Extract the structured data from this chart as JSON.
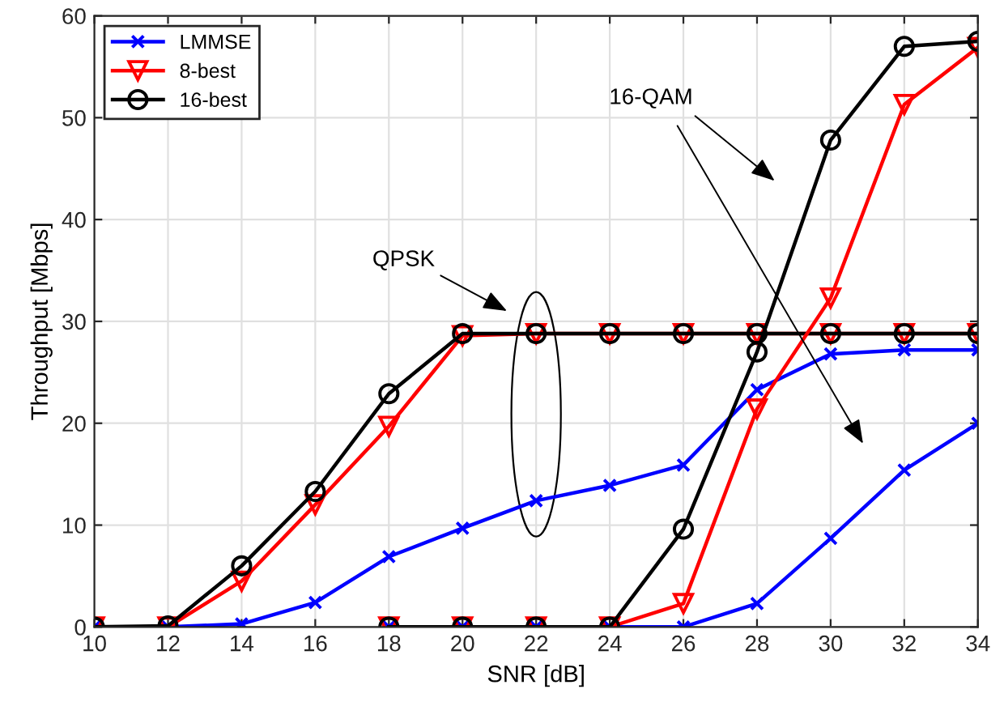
{
  "chart_data": {
    "type": "line",
    "xlabel": "SNR [dB]",
    "ylabel": "Throughput [Mbps]",
    "x": [
      10,
      12,
      14,
      16,
      18,
      20,
      22,
      24,
      26,
      28,
      30,
      32,
      34
    ],
    "series": [
      {
        "name": "LMMSE",
        "color": "#0000ff",
        "marker": "cross",
        "values": [
          0,
          0,
          0.3,
          2.4,
          6.9,
          9.7,
          12.4,
          13.9,
          15.9,
          23.3,
          26.8,
          27.2,
          27.2
        ]
      },
      {
        "name": "8-best",
        "color": "#ff0000",
        "marker": "triangle",
        "values": [
          0,
          0,
          4.5,
          12.0,
          19.7,
          28.6,
          28.8,
          28.8,
          28.8,
          28.8,
          28.8,
          28.8,
          28.8
        ]
      },
      {
        "name": "16-best",
        "color": "#000000",
        "marker": "circle",
        "values": [
          0,
          0.1,
          6.0,
          13.3,
          22.9,
          28.8,
          28.8,
          28.8,
          28.8,
          28.8,
          28.8,
          28.8,
          28.8
        ]
      },
      {
        "color": "#0000ff",
        "marker": "cross",
        "values": [
          null,
          null,
          null,
          null,
          0,
          0,
          0,
          0,
          0,
          2.3,
          8.7,
          15.4,
          20.0
        ]
      },
      {
        "color": "#ff0000",
        "marker": "triangle",
        "values": [
          null,
          null,
          null,
          null,
          0,
          0,
          0,
          0,
          2.3,
          21.4,
          32.3,
          51.3,
          56.9
        ]
      },
      {
        "color": "#000000",
        "marker": "circle",
        "values": [
          null,
          null,
          null,
          null,
          0,
          0,
          0,
          0,
          9.6,
          27.0,
          47.8,
          57.0,
          57.5
        ]
      }
    ],
    "xlim": [
      10,
      34
    ],
    "ylim": [
      0,
      60
    ],
    "xticks": [
      10,
      12,
      14,
      16,
      18,
      20,
      22,
      24,
      26,
      28,
      30,
      32,
      34
    ],
    "yticks": [
      0,
      10,
      20,
      30,
      40,
      50,
      60
    ],
    "grid": true,
    "legend": "top left",
    "line_style": "solid",
    "annotations": [
      "QPSK",
      "16-QAM"
    ]
  }
}
